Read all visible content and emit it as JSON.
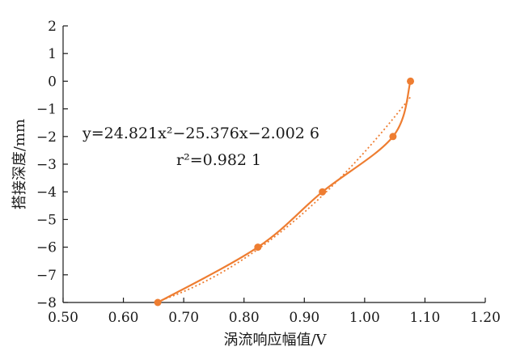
{
  "chart_data": {
    "type": "scatter",
    "title": "",
    "xlabel": "涡流响应幅值/V",
    "ylabel": "搭接深度/mm",
    "xlim": [
      0.5,
      1.2
    ],
    "ylim": [
      -8,
      2
    ],
    "xticks": [
      "0.50",
      "0.60",
      "0.70",
      "0.80",
      "0.90",
      "1.00",
      "1.10",
      "1.20"
    ],
    "yticks": [
      "2",
      "1",
      "0",
      "−1",
      "−2",
      "−3",
      "−4",
      "−5",
      "−6",
      "−7",
      "−8"
    ],
    "grid": false,
    "series": [
      {
        "x": [
          0.657,
          0.823,
          0.93,
          1.047,
          1.076
        ],
        "y": [
          -8,
          -6,
          -4,
          -2,
          0
        ],
        "color": "#ee7d31",
        "style": "smooth line with markers"
      }
    ],
    "trendline": {
      "type": "polynomial-2",
      "coefficients": [
        24.821,
        -25.376,
        -2.0026
      ],
      "style": "dotted",
      "color": "#ee7d31"
    },
    "annotations": {
      "equation": "y=24.821x²−25.376x−2.002 6",
      "r_squared": "r²=0.982 1"
    }
  }
}
